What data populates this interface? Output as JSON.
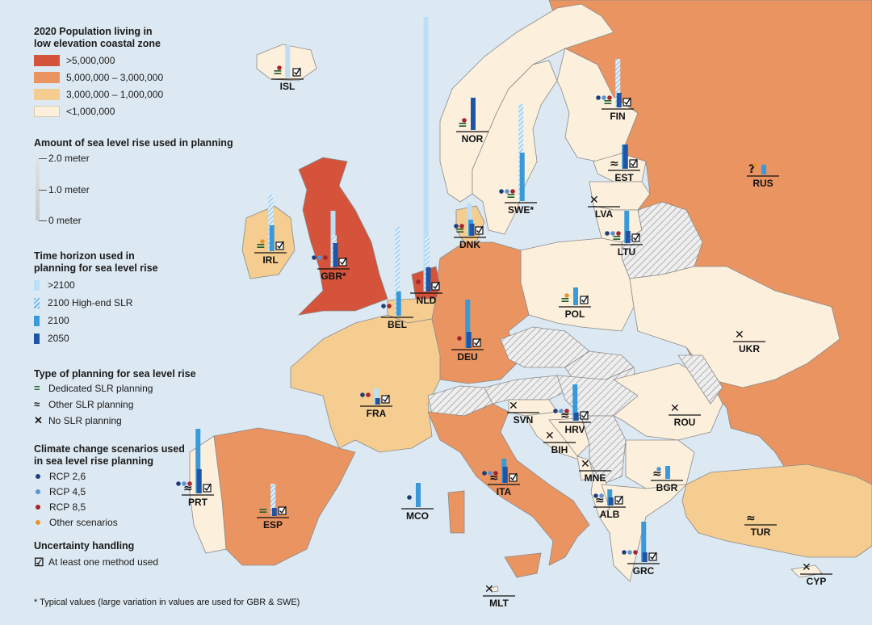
{
  "legend": {
    "population": {
      "title_line1": "2020 Population living in",
      "title_line2": "low elevation coastal zone",
      "classes": [
        {
          "label": ">5,000,000",
          "color": "#d4533a"
        },
        {
          "label": "5,000,000 – 3,000,000",
          "color": "#ea9461"
        },
        {
          "label": "3,000,000 – 1,000,000",
          "color": "#f5cd91"
        },
        {
          "label": "<1,000,000",
          "color": "#fcf0dd"
        }
      ]
    },
    "slr_amount": {
      "title": "Amount of sea level rise used in planning",
      "ticks": [
        "2.0 meter",
        "1.0 meter",
        "0 meter"
      ]
    },
    "time_horizon": {
      "title_line1": "Time horizon used in",
      "title_line2": "planning for sea level rise",
      "items": [
        {
          "label": ">2100",
          "color": "#bcdff5"
        },
        {
          "label": "2100 High-end SLR",
          "color": "#9fcfee"
        },
        {
          "label": "2100",
          "color": "#3a9ad9"
        },
        {
          "label": "2050",
          "color": "#1f55a4"
        }
      ]
    },
    "planning_type": {
      "title": "Type of planning for sea level rise",
      "items": [
        {
          "symbol": "=",
          "label": "Dedicated SLR planning",
          "color": "#1f5e2b"
        },
        {
          "symbol": "≈",
          "label": "Other SLR planning",
          "color": "#111111"
        },
        {
          "symbol": "✕",
          "label": "No SLR planning",
          "color": "#111111"
        }
      ]
    },
    "scenarios": {
      "title_line1": "Climate change scenarios used",
      "title_line2": "in sea level rise planning",
      "items": [
        {
          "label": "RCP 2,6",
          "color": "#1c3f7a"
        },
        {
          "label": "RCP 4,5",
          "color": "#5b93cf"
        },
        {
          "label": "RCP 8,5",
          "color": "#a8232a"
        },
        {
          "label": "Other scenarios",
          "color": "#e9962a"
        }
      ]
    },
    "uncertainty": {
      "title": "Uncertainty handling",
      "item": "At least one method used",
      "symbol": "☑"
    }
  },
  "footnote": "* Typical values (large variation in values are used for GBR & SWE)",
  "countries": [
    {
      "code": "ISL"
    },
    {
      "code": "NOR"
    },
    {
      "code": "FIN"
    },
    {
      "code": "SWE*"
    },
    {
      "code": "EST"
    },
    {
      "code": "RUS"
    },
    {
      "code": "LVA"
    },
    {
      "code": "IRL"
    },
    {
      "code": "GBR*"
    },
    {
      "code": "DNK"
    },
    {
      "code": "LTU"
    },
    {
      "code": "NLD"
    },
    {
      "code": "BEL"
    },
    {
      "code": "POL"
    },
    {
      "code": "DEU"
    },
    {
      "code": "UKR"
    },
    {
      "code": "FRA"
    },
    {
      "code": "SVN"
    },
    {
      "code": "HRV"
    },
    {
      "code": "ROU"
    },
    {
      "code": "BIH"
    },
    {
      "code": "MNE"
    },
    {
      "code": "BGR"
    },
    {
      "code": "PRT"
    },
    {
      "code": "ITA"
    },
    {
      "code": "MCO"
    },
    {
      "code": "ALB"
    },
    {
      "code": "ESP"
    },
    {
      "code": "TUR"
    },
    {
      "code": "GRC"
    },
    {
      "code": "CYP"
    },
    {
      "code": "MLT"
    }
  ]
}
